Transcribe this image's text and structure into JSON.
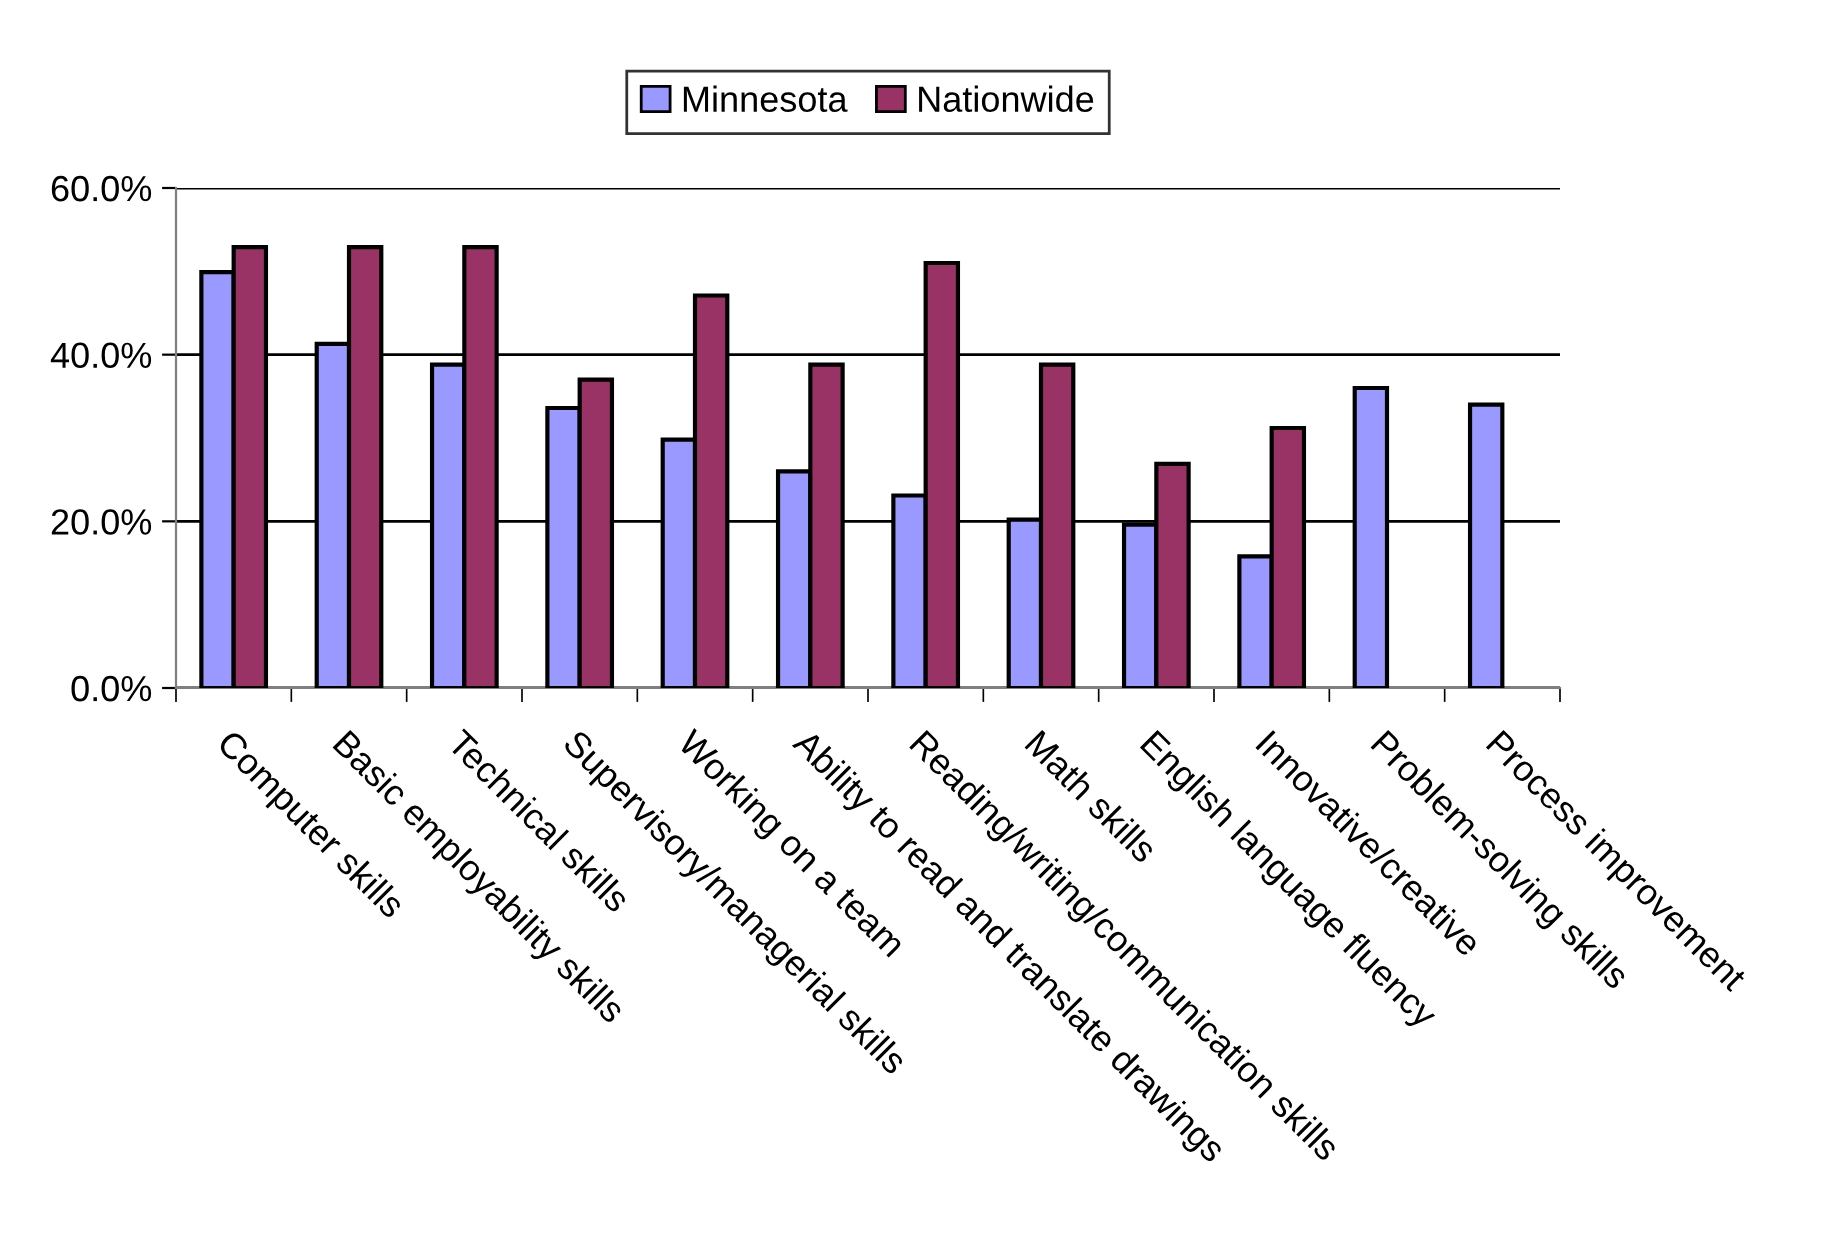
{
  "chart_data": {
    "type": "bar",
    "categories": [
      "Computer skills",
      "Basic employability skills",
      "Technical skills",
      "Supervisory/managerial skills",
      "Working on a team",
      "Ability to read and translate drawings",
      "Reading/writing/communication skills",
      "Math skills",
      "English language fluency",
      "Innovative/creative",
      "Problem-solving skills",
      "Process improvement"
    ],
    "series": [
      {
        "name": "Minnesota",
        "color": "#9999ff",
        "values": [
          49.9,
          41.3,
          38.8,
          33.6,
          29.8,
          26.0,
          23.1,
          20.2,
          19.6,
          15.8,
          36.0,
          34.0
        ]
      },
      {
        "name": "Nationwide",
        "color": "#993366",
        "values": [
          52.9,
          52.9,
          52.9,
          37.0,
          47.1,
          38.8,
          51.0,
          38.8,
          26.9,
          31.2,
          null,
          null
        ]
      }
    ],
    "ylim": [
      0,
      60
    ],
    "yticks": [
      {
        "value": 0,
        "label": "0.0%"
      },
      {
        "value": 20,
        "label": "20.0%"
      },
      {
        "value": 40,
        "label": "40.0%"
      },
      {
        "value": 60,
        "label": "60.0%"
      }
    ],
    "grid": "y",
    "legend": "top"
  }
}
